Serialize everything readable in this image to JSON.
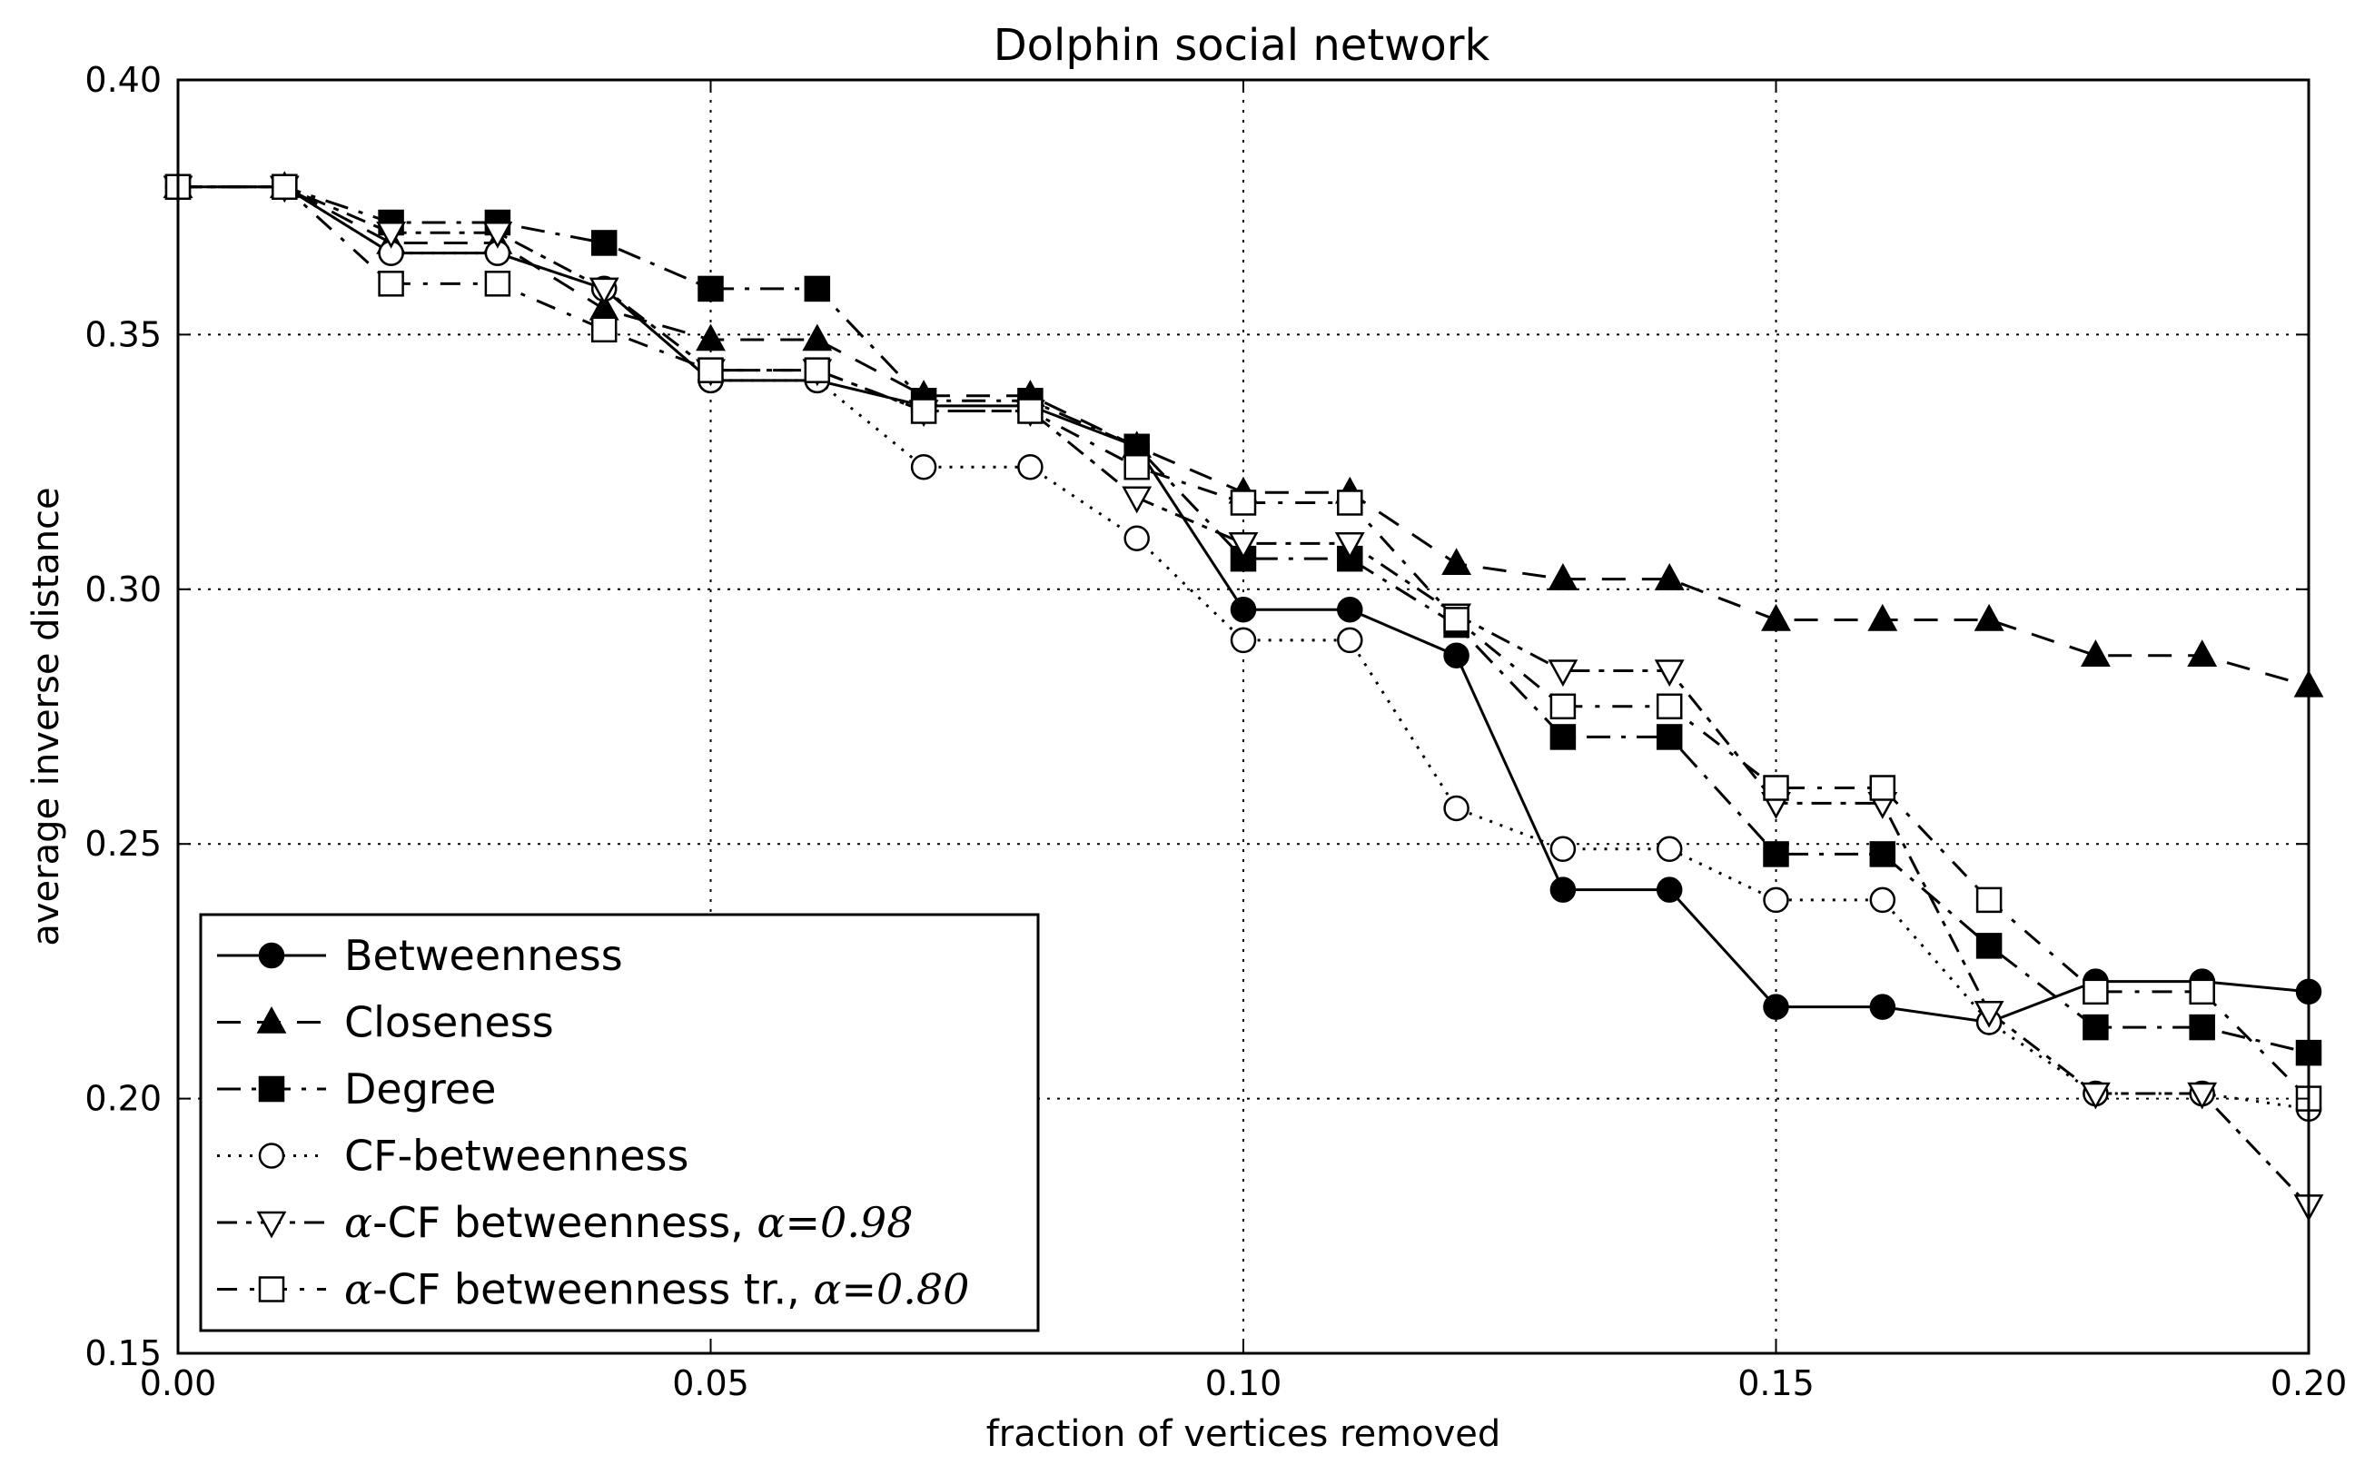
{
  "chart_data": {
    "type": "line",
    "title": "Dolphin social network",
    "xlabel": "fraction of vertices removed",
    "ylabel": "average inverse distance",
    "xlim": [
      0.0,
      0.2
    ],
    "ylim": [
      0.15,
      0.4
    ],
    "xticks": [
      0.0,
      0.05,
      0.1,
      0.15,
      0.2
    ],
    "xtick_labels": [
      "0.00",
      "0.05",
      "0.10",
      "0.15",
      "0.20"
    ],
    "yticks": [
      0.15,
      0.2,
      0.25,
      0.3,
      0.35,
      0.4
    ],
    "ytick_labels": [
      "0.15",
      "0.20",
      "0.25",
      "0.30",
      "0.35",
      "0.40"
    ],
    "grid": true,
    "legend_position": "lower-left",
    "x": [
      0.0,
      0.01,
      0.02,
      0.03,
      0.04,
      0.05,
      0.06,
      0.07,
      0.08,
      0.09,
      0.1,
      0.11,
      0.12,
      0.13,
      0.14,
      0.15,
      0.16,
      0.17,
      0.18,
      0.19,
      0.2
    ],
    "series": [
      {
        "name": "Betweenness",
        "label_parts": [
          {
            "text": "Betweenness",
            "math": false
          }
        ],
        "marker": "circle",
        "fill": "#000000",
        "dash": "",
        "values": [
          0.379,
          0.379,
          0.366,
          0.366,
          0.359,
          0.341,
          0.341,
          0.336,
          0.336,
          0.328,
          0.296,
          0.296,
          0.287,
          0.241,
          0.241,
          0.218,
          0.218,
          0.215,
          0.223,
          0.223,
          0.221
        ]
      },
      {
        "name": "Closeness",
        "label_parts": [
          {
            "text": "Closeness",
            "math": false
          }
        ],
        "marker": "triangle-up",
        "fill": "#000000",
        "dash": "26,18",
        "values": [
          0.379,
          0.379,
          0.368,
          0.368,
          0.355,
          0.349,
          0.349,
          0.338,
          0.338,
          0.328,
          0.319,
          0.319,
          0.305,
          0.302,
          0.302,
          0.294,
          0.294,
          0.294,
          0.287,
          0.287,
          0.281
        ]
      },
      {
        "name": "Degree",
        "label_parts": [
          {
            "text": "Degree",
            "math": false
          }
        ],
        "marker": "square",
        "fill": "#000000",
        "dash": "26,12,5,12",
        "values": [
          0.379,
          0.379,
          0.372,
          0.372,
          0.368,
          0.359,
          0.359,
          0.337,
          0.337,
          0.328,
          0.306,
          0.306,
          0.293,
          0.271,
          0.271,
          0.248,
          0.248,
          0.23,
          0.214,
          0.214,
          0.209
        ]
      },
      {
        "name": "CF-betweenness",
        "label_parts": [
          {
            "text": "CF-betweenness",
            "math": false
          }
        ],
        "marker": "circle",
        "fill": "#ffffff",
        "dash": "3,9",
        "values": [
          0.379,
          0.379,
          0.366,
          0.366,
          0.359,
          0.341,
          0.341,
          0.324,
          0.324,
          0.31,
          0.29,
          0.29,
          0.257,
          0.249,
          0.249,
          0.239,
          0.239,
          0.215,
          0.201,
          0.201,
          0.198
        ]
      },
      {
        "name": "α-CF betweenness, α=0.98",
        "label_parts": [
          {
            "text": "α",
            "math": true
          },
          {
            "text": "-CF betweenness, ",
            "math": false
          },
          {
            "text": "α",
            "math": true
          },
          {
            "text": "=",
            "math": false
          },
          {
            "text": "0.98",
            "math": true
          }
        ],
        "marker": "triangle-down",
        "fill": "#ffffff",
        "dash": "22,10,6,10",
        "values": [
          0.379,
          0.379,
          0.37,
          0.37,
          0.359,
          0.343,
          0.343,
          0.335,
          0.335,
          0.318,
          0.309,
          0.309,
          0.295,
          0.284,
          0.284,
          0.258,
          0.258,
          0.217,
          0.201,
          0.201,
          0.179
        ]
      },
      {
        "name": "α-CF betweenness tr., α=0.80",
        "label_parts": [
          {
            "text": "α",
            "math": true
          },
          {
            "text": "-CF betweenness tr., ",
            "math": false
          },
          {
            "text": "α",
            "math": true
          },
          {
            "text": "=",
            "math": false
          },
          {
            "text": "0.80",
            "math": true
          }
        ],
        "marker": "square",
        "fill": "#ffffff",
        "dash": "22,14,5,14",
        "values": [
          0.379,
          0.379,
          0.36,
          0.36,
          0.351,
          0.343,
          0.343,
          0.335,
          0.335,
          0.324,
          0.317,
          0.317,
          0.294,
          0.277,
          0.277,
          0.261,
          0.261,
          0.239,
          0.221,
          0.221,
          0.2
        ]
      }
    ]
  }
}
